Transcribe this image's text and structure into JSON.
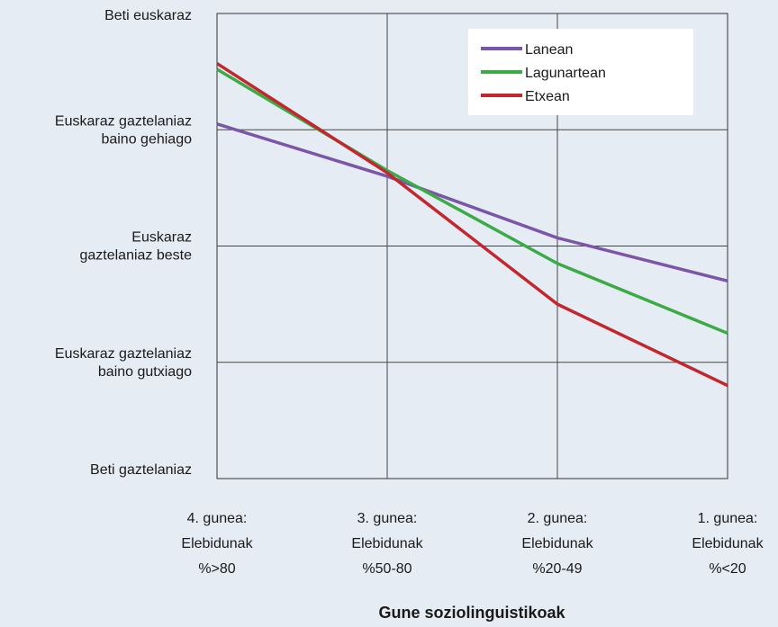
{
  "chart_data": {
    "type": "line",
    "title": "",
    "xlabel": "Gune soziolinguistikoak",
    "ylabel": "",
    "categories": [
      [
        "4. gunea:",
        "Elebidunak",
        "%>80"
      ],
      [
        "3. gunea:",
        "Elebidunak",
        "%50-80"
      ],
      [
        "2. gunea:",
        "Elebidunak",
        "%20-49"
      ],
      [
        "1. gunea:",
        "Elebidunak",
        "%<20"
      ]
    ],
    "y_levels": [
      [
        "Beti gaztelaniaz"
      ],
      [
        "Euskaraz gaztelaniaz",
        "baino gutxiago"
      ],
      [
        "Euskaraz",
        "gaztelaniaz beste"
      ],
      [
        "Euskaraz gaztelaniaz",
        "baino gehiago"
      ],
      [
        "Beti euskaraz"
      ]
    ],
    "ylim": [
      0,
      4
    ],
    "grid": true,
    "legend_position": "top-right",
    "series": [
      {
        "name": "Lanean",
        "color": "#7b56a8",
        "values": [
          3.05,
          2.6,
          2.07,
          1.7
        ]
      },
      {
        "name": "Lagunartean",
        "color": "#3daa48",
        "values": [
          3.52,
          2.65,
          1.85,
          1.25
        ]
      },
      {
        "name": "Etxean",
        "color": "#c1272d",
        "values": [
          3.57,
          2.63,
          1.5,
          0.8
        ]
      }
    ]
  }
}
